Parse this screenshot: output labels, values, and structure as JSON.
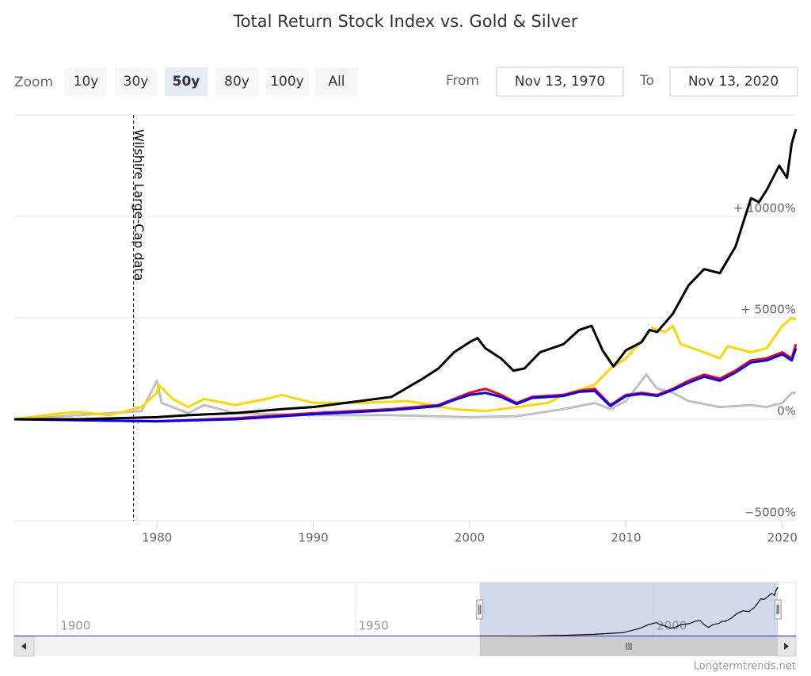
{
  "chart_data": {
    "type": "line",
    "title": "Total Return Stock Index vs. Gold & Silver",
    "range_selector": {
      "label": "Zoom",
      "buttons": [
        "10y",
        "30y",
        "50y",
        "80y",
        "100y",
        "All"
      ],
      "selected": 2,
      "from_label": "From",
      "from": "Nov 13, 1970",
      "to_label": "To",
      "to": "Nov 13, 2020"
    },
    "xlim": [
      1970.87,
      2020.87
    ],
    "xticks": [
      1980,
      1990,
      2000,
      2010,
      2020
    ],
    "ylim": [
      -5000,
      15000
    ],
    "yticks": [
      {
        "value": -5000,
        "label": "−5000%"
      },
      {
        "value": 0,
        "label": "0%"
      },
      {
        "value": 5000,
        "label": "+ 5000%"
      },
      {
        "value": 10000,
        "label": "+ 10000%"
      }
    ],
    "grid": true,
    "plot_line": {
      "value": 1978.5,
      "label": "Wilshire Large-Cap data"
    },
    "series": [
      {
        "color": "#000000",
        "x": [
          1970.87,
          1975,
          1980,
          1982,
          1985,
          1988,
          1990,
          1993,
          1995,
          1997,
          1998,
          1999,
          2000,
          2000.5,
          2001,
          2002,
          2002.8,
          2003.5,
          2004.5,
          2006,
          2007,
          2007.8,
          2008.5,
          2009.2,
          2010,
          2011,
          2011.5,
          2012,
          2013,
          2014,
          2015,
          2016,
          2017,
          2018,
          2018.5,
          2019,
          2019.8,
          2020.3,
          2020.6,
          2020.87
        ],
        "values": [
          0,
          0,
          100,
          200,
          300,
          500,
          600,
          900,
          1100,
          2000,
          2500,
          3300,
          3800,
          4000,
          3500,
          3000,
          2400,
          2500,
          3300,
          3700,
          4400,
          4600,
          3400,
          2600,
          3400,
          3800,
          4400,
          4300,
          5200,
          6600,
          7400,
          7200,
          8500,
          10900,
          10700,
          11300,
          12500,
          11900,
          13600,
          14300
        ]
      },
      {
        "color": "#ffd700",
        "x": [
          1970.87,
          1974,
          1975,
          1977,
          1979,
          1980,
          1980.1,
          1981,
          1982,
          1983,
          1985,
          1987,
          1988,
          1990,
          1993,
          1996,
          1999,
          2001,
          2003,
          2005,
          2006,
          2008,
          2009,
          2010,
          2011.7,
          2012.5,
          2013,
          2013.5,
          2015,
          2016,
          2016.5,
          2018,
          2019,
          2020,
          2020.6,
          2020.87
        ],
        "values": [
          0,
          300,
          350,
          200,
          600,
          1300,
          1700,
          1000,
          600,
          1000,
          700,
          1000,
          1200,
          800,
          800,
          900,
          500,
          400,
          600,
          800,
          1200,
          1700,
          2500,
          3000,
          4500,
          4300,
          4600,
          3700,
          3300,
          3000,
          3600,
          3300,
          3500,
          4600,
          5000,
          4900
        ]
      },
      {
        "color": "#c0c0c0",
        "x": [
          1970.87,
          1979,
          1980,
          1980.3,
          1982,
          1983,
          1985,
          1990,
          1995,
          2000,
          2003,
          2006,
          2008,
          2009,
          2010,
          2011.3,
          2012,
          2013,
          2014,
          2016,
          2018,
          2019,
          2020,
          2020.6,
          2020.87
        ],
        "values": [
          0,
          400,
          1900,
          800,
          300,
          700,
          300,
          200,
          200,
          100,
          150,
          500,
          800,
          500,
          900,
          2200,
          1500,
          1300,
          900,
          600,
          700,
          600,
          800,
          1300,
          1300
        ]
      },
      {
        "color": "#ff0000",
        "x": [
          1970.87,
          1980,
          1985,
          1990,
          1995,
          1998,
          1999,
          2000,
          2001,
          2002,
          2003,
          2004,
          2006,
          2007,
          2008,
          2009,
          2010,
          2011,
          2012,
          2013,
          2014,
          2015,
          2016,
          2017,
          2018,
          2019,
          2020,
          2020.6,
          2020.87
        ],
        "values": [
          0,
          -100,
          50,
          300,
          500,
          700,
          1000,
          1300,
          1500,
          1200,
          800,
          1100,
          1200,
          1400,
          1500,
          700,
          1200,
          1300,
          1200,
          1500,
          1900,
          2200,
          2000,
          2400,
          2900,
          3000,
          3300,
          3000,
          3700
        ]
      },
      {
        "color": "#0000ff",
        "x": [
          1970.87,
          1980,
          1985,
          1990,
          1995,
          1998,
          1999,
          2000,
          2001,
          2002,
          2003,
          2004,
          2006,
          2007,
          2008,
          2009,
          2010,
          2011,
          2012,
          2013,
          2014,
          2015,
          2016,
          2017,
          2018,
          2019,
          2020,
          2020.6,
          2020.87
        ],
        "values": [
          0,
          -100,
          0,
          250,
          450,
          650,
          950,
          1200,
          1300,
          1100,
          750,
          1050,
          1150,
          1350,
          1400,
          650,
          1150,
          1250,
          1150,
          1450,
          1800,
          2100,
          1900,
          2300,
          2800,
          2900,
          3200,
          2900,
          3500
        ]
      }
    ],
    "navigator": {
      "xlim": [
        1892.8,
        2023.9
      ],
      "xticks": [
        1900,
        1950,
        2000
      ],
      "ylim": [
        0,
        14500
      ]
    },
    "credits": "Longtermtrends.net"
  }
}
